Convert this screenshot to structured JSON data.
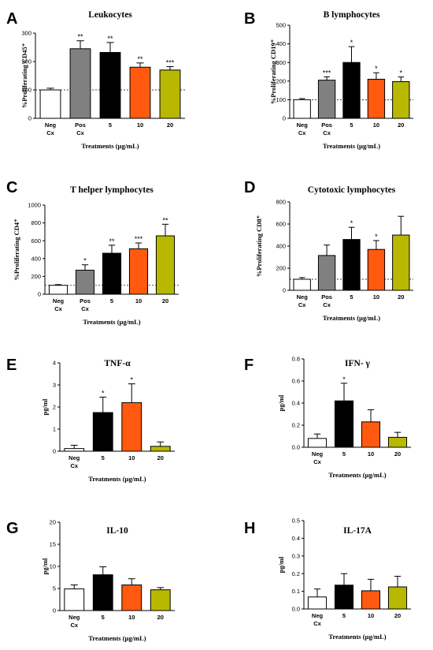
{
  "chart_data": [
    {
      "panel": "A",
      "type": "bar",
      "title": "Leukocytes",
      "ylabel": "%Proliferating CD45⁺",
      "xlabel": "Treatments (µg/mL)",
      "categories": [
        "Neg Cx",
        "Pos Cx",
        "5",
        "10",
        "20"
      ],
      "values": [
        100,
        245,
        232,
        180,
        170
      ],
      "errors": [
        6,
        28,
        35,
        15,
        12
      ],
      "significance": [
        "",
        "**",
        "**",
        "**",
        "***"
      ],
      "colors": [
        "#ffffff",
        "#808080",
        "#000000",
        "#ff5a10",
        "#b8b800"
      ],
      "ylim": [
        0,
        300
      ],
      "yticks": [
        0,
        100,
        200,
        300
      ],
      "reference_line": 100
    },
    {
      "panel": "B",
      "type": "bar",
      "title": "B lymphocytes",
      "ylabel": "%Proliferating CD19⁺",
      "xlabel": "Treatments (µg/mL)",
      "categories": [
        "Neg Cx",
        "Pos Cx",
        "5",
        "10",
        "20"
      ],
      "values": [
        100,
        205,
        300,
        210,
        197
      ],
      "errors": [
        6,
        18,
        85,
        35,
        25
      ],
      "significance": [
        "",
        "***",
        "*",
        "*",
        "*"
      ],
      "colors": [
        "#ffffff",
        "#808080",
        "#000000",
        "#ff5a10",
        "#b8b800"
      ],
      "ylim": [
        0,
        500
      ],
      "yticks": [
        0,
        100,
        200,
        300,
        400,
        500
      ],
      "reference_line": 100
    },
    {
      "panel": "C",
      "type": "bar",
      "title": "T helper lymphocytes",
      "ylabel": "%Proliferating CD4⁺",
      "xlabel": "Treatments (µg/mL)",
      "categories": [
        "Neg Cx",
        "Pos Cx",
        "5",
        "10",
        "20"
      ],
      "values": [
        100,
        270,
        460,
        510,
        655
      ],
      "errors": [
        8,
        60,
        90,
        65,
        130
      ],
      "significance": [
        "",
        "*",
        "**",
        "***",
        "**"
      ],
      "colors": [
        "#ffffff",
        "#808080",
        "#000000",
        "#ff5a10",
        "#b8b800"
      ],
      "ylim": [
        0,
        1000
      ],
      "yticks": [
        0,
        200,
        400,
        600,
        800,
        1000
      ],
      "reference_line": 100
    },
    {
      "panel": "D",
      "type": "bar",
      "title": "Cytotoxic lymphocytes",
      "ylabel": "%Proliferating CD8⁺",
      "xlabel": "Treatments (µg/mL)",
      "categories": [
        "Neg Cx",
        "Pos Cx",
        "5",
        "10",
        "20"
      ],
      "values": [
        100,
        315,
        460,
        370,
        500
      ],
      "errors": [
        15,
        95,
        110,
        80,
        170
      ],
      "significance": [
        "",
        "",
        "*",
        "*",
        ""
      ],
      "colors": [
        "#ffffff",
        "#808080",
        "#000000",
        "#ff5a10",
        "#b8b800"
      ],
      "ylim": [
        0,
        800
      ],
      "yticks": [
        0,
        200,
        400,
        600,
        800
      ],
      "reference_line": 100
    },
    {
      "panel": "E",
      "type": "bar",
      "title": "TNF-α",
      "ylabel": "pg/ml",
      "xlabel": "Treatments (µg/mL)",
      "categories": [
        "Neg Cx",
        "5",
        "10",
        "20"
      ],
      "values": [
        0.12,
        1.75,
        2.2,
        0.22
      ],
      "errors": [
        0.15,
        0.7,
        0.85,
        0.2
      ],
      "significance": [
        "",
        "*",
        "*",
        ""
      ],
      "colors": [
        "#ffffff",
        "#000000",
        "#ff5a10",
        "#b8b800"
      ],
      "ylim": [
        0,
        4
      ],
      "yticks": [
        0,
        1,
        2,
        3,
        4
      ]
    },
    {
      "panel": "F",
      "type": "bar",
      "title": "IFN- γ",
      "ylabel": "pg/ml",
      "xlabel": "Treatments (µg/mL)",
      "categories": [
        "Neg Cx",
        "5",
        "10",
        "20"
      ],
      "values": [
        0.08,
        0.42,
        0.23,
        0.09
      ],
      "errors": [
        0.04,
        0.16,
        0.11,
        0.045
      ],
      "significance": [
        "",
        "*",
        "",
        ""
      ],
      "colors": [
        "#ffffff",
        "#000000",
        "#ff5a10",
        "#b8b800"
      ],
      "ylim": [
        0,
        0.8
      ],
      "yticks": [
        0.0,
        0.2,
        0.4,
        0.6,
        0.8
      ]
    },
    {
      "panel": "G",
      "type": "bar",
      "title": "IL-10",
      "ylabel": "pg/ml",
      "xlabel": "Treatments (µg/mL)",
      "categories": [
        "Neg Cx",
        "5",
        "10",
        "20"
      ],
      "values": [
        4.9,
        8.1,
        5.8,
        4.7
      ],
      "errors": [
        0.9,
        1.8,
        1.4,
        0.5
      ],
      "significance": [
        "",
        "",
        "",
        ""
      ],
      "colors": [
        "#ffffff",
        "#000000",
        "#ff5a10",
        "#b8b800"
      ],
      "ylim": [
        0,
        20
      ],
      "yticks": [
        0,
        5,
        10,
        15,
        20
      ]
    },
    {
      "panel": "H",
      "type": "bar",
      "title": "IL-17A",
      "ylabel": "pg/ml",
      "xlabel": "Treatments (µg/mL)",
      "categories": [
        "Neg Cx",
        "5",
        "10",
        "20"
      ],
      "values": [
        0.068,
        0.135,
        0.103,
        0.125
      ],
      "errors": [
        0.045,
        0.065,
        0.065,
        0.06
      ],
      "significance": [
        "",
        "",
        "",
        ""
      ],
      "colors": [
        "#ffffff",
        "#000000",
        "#ff5a10",
        "#b8b800"
      ],
      "ylim": [
        0,
        0.5
      ],
      "yticks": [
        0.0,
        0.1,
        0.2,
        0.3,
        0.4,
        0.5
      ]
    }
  ]
}
